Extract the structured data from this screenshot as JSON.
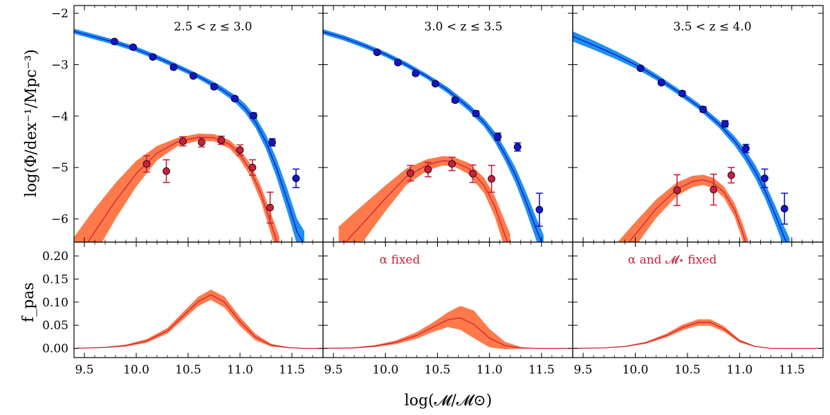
{
  "chart_data": {
    "type": "line",
    "xlabel": "log(𝓜/𝓜⊙)",
    "xlim": [
      9.4,
      11.8
    ],
    "xticks": [
      "9.5",
      "10.0",
      "10.5",
      "11.0",
      "11.5"
    ],
    "xtick_values": [
      9.5,
      10.0,
      10.5,
      11.0,
      11.5
    ],
    "top": {
      "ylabel": "log(Φ/dex⁻¹/Mpc⁻³)",
      "ylim": [
        -6.45,
        -1.85
      ],
      "yticks": [
        "−2",
        "−3",
        "−4",
        "−5",
        "−6"
      ],
      "ytick_values": [
        -2,
        -3,
        -4,
        -5,
        -6
      ]
    },
    "bottom": {
      "ylabel": "f_pas",
      "ylim": [
        -0.02,
        0.23
      ],
      "yticks": [
        "0.00",
        "0.05",
        "0.10",
        "0.15",
        "0.20"
      ],
      "ytick_values": [
        0,
        0.05,
        0.1,
        0.15,
        0.2
      ]
    },
    "colors": {
      "total_band": "#1e90f0",
      "total_line": "#1010c8",
      "total_point": "#1414c8",
      "passive_band": "#ff7a4a",
      "passive_line": "#d0203a",
      "passive_point": "#c8203c",
      "annotation": "#c8203c"
    },
    "panels": [
      {
        "label": "2.5 < z ≤ 3.0",
        "annotation": "",
        "total_points": [
          {
            "x": 9.79,
            "y": -2.55,
            "err": 0.03
          },
          {
            "x": 9.97,
            "y": -2.66,
            "err": 0.03
          },
          {
            "x": 10.16,
            "y": -2.85,
            "err": 0.03
          },
          {
            "x": 10.36,
            "y": -3.05,
            "err": 0.03
          },
          {
            "x": 10.55,
            "y": -3.22,
            "err": 0.03
          },
          {
            "x": 10.75,
            "y": -3.43,
            "err": 0.04
          },
          {
            "x": 10.95,
            "y": -3.66,
            "err": 0.04
          },
          {
            "x": 11.13,
            "y": -3.99,
            "err": 0.05
          },
          {
            "x": 11.31,
            "y": -4.51,
            "err": 0.07
          },
          {
            "x": 11.54,
            "y": -5.21,
            "err": 0.18
          }
        ],
        "total_fit": {
          "x": [
            9.4,
            9.6,
            9.8,
            10.0,
            10.2,
            10.4,
            10.6,
            10.8,
            10.95,
            11.05,
            11.15,
            11.25,
            11.35,
            11.45,
            11.55,
            11.62
          ],
          "y": [
            -2.35,
            -2.46,
            -2.57,
            -2.7,
            -2.86,
            -3.04,
            -3.23,
            -3.45,
            -3.66,
            -3.85,
            -4.12,
            -4.5,
            -5.0,
            -5.6,
            -6.25,
            -6.5
          ],
          "band": [
            0.05,
            0.05,
            0.05,
            0.05,
            0.05,
            0.05,
            0.05,
            0.06,
            0.07,
            0.09,
            0.11,
            0.14,
            0.18,
            0.22,
            0.25,
            0.26
          ]
        },
        "passive_points": [
          {
            "x": 10.1,
            "y": -4.93,
            "err": 0.16
          },
          {
            "x": 10.29,
            "y": -5.07,
            "err": 0.22
          },
          {
            "x": 10.45,
            "y": -4.49,
            "err": 0.09
          },
          {
            "x": 10.63,
            "y": -4.51,
            "err": 0.09
          },
          {
            "x": 10.82,
            "y": -4.47,
            "err": 0.08
          },
          {
            "x": 11.0,
            "y": -4.66,
            "err": 0.1
          },
          {
            "x": 11.12,
            "y": -5.0,
            "err": 0.15
          },
          {
            "x": 11.29,
            "y": -5.78,
            "err": 0.3
          }
        ],
        "passive_fit": {
          "x": [
            9.4,
            9.6,
            9.8,
            10.0,
            10.2,
            10.4,
            10.6,
            10.75,
            10.9,
            11.0,
            11.1,
            11.2,
            11.3,
            11.38
          ],
          "y": [
            -6.85,
            -6.25,
            -5.65,
            -5.12,
            -4.72,
            -4.5,
            -4.41,
            -4.42,
            -4.55,
            -4.75,
            -5.05,
            -5.5,
            -6.1,
            -6.6
          ],
          "band": [
            0.5,
            0.45,
            0.35,
            0.25,
            0.14,
            0.08,
            0.07,
            0.07,
            0.08,
            0.1,
            0.12,
            0.15,
            0.2,
            0.25
          ]
        },
        "fpas": {
          "x": [
            9.4,
            9.7,
            9.9,
            10.1,
            10.3,
            10.45,
            10.6,
            10.72,
            10.85,
            11.0,
            11.15,
            11.3,
            11.45,
            11.6,
            11.8
          ],
          "y": [
            0.0,
            0.002,
            0.006,
            0.016,
            0.038,
            0.07,
            0.102,
            0.116,
            0.1,
            0.058,
            0.024,
            0.007,
            0.002,
            0.0,
            0.0
          ],
          "band": [
            0.0,
            0.001,
            0.002,
            0.004,
            0.006,
            0.008,
            0.01,
            0.011,
            0.012,
            0.01,
            0.007,
            0.003,
            0.001,
            0.0,
            0.0
          ]
        }
      },
      {
        "label": "3.0 < z ≤ 3.5",
        "annotation": "α fixed",
        "total_points": [
          {
            "x": 9.92,
            "y": -2.76,
            "err": 0.03
          },
          {
            "x": 10.12,
            "y": -2.96,
            "err": 0.03
          },
          {
            "x": 10.29,
            "y": -3.17,
            "err": 0.03
          },
          {
            "x": 10.48,
            "y": -3.37,
            "err": 0.03
          },
          {
            "x": 10.67,
            "y": -3.69,
            "err": 0.04
          },
          {
            "x": 10.87,
            "y": -3.95,
            "err": 0.05
          },
          {
            "x": 11.08,
            "y": -4.4,
            "err": 0.07
          },
          {
            "x": 11.27,
            "y": -4.6,
            "err": 0.08
          },
          {
            "x": 11.48,
            "y": -5.82,
            "err": 0.32
          }
        ],
        "total_fit": {
          "x": [
            9.4,
            9.6,
            9.8,
            10.0,
            10.2,
            10.4,
            10.6,
            10.8,
            10.95,
            11.05,
            11.15,
            11.25,
            11.35,
            11.45,
            11.52
          ],
          "y": [
            -2.36,
            -2.48,
            -2.63,
            -2.8,
            -3.0,
            -3.23,
            -3.5,
            -3.83,
            -4.13,
            -4.4,
            -4.75,
            -5.15,
            -5.65,
            -6.2,
            -6.55
          ],
          "band": [
            0.05,
            0.05,
            0.05,
            0.05,
            0.05,
            0.05,
            0.06,
            0.07,
            0.08,
            0.1,
            0.12,
            0.15,
            0.18,
            0.22,
            0.24
          ]
        },
        "passive_points": [
          {
            "x": 10.24,
            "y": -5.11,
            "err": 0.15
          },
          {
            "x": 10.41,
            "y": -5.04,
            "err": 0.14
          },
          {
            "x": 10.64,
            "y": -4.93,
            "err": 0.13
          },
          {
            "x": 10.84,
            "y": -5.12,
            "err": 0.17
          },
          {
            "x": 11.02,
            "y": -5.22,
            "err": 0.26
          }
        ],
        "passive_fit": {
          "x": [
            9.55,
            9.8,
            10.0,
            10.2,
            10.4,
            10.55,
            10.65,
            10.8,
            10.95,
            11.05,
            11.12,
            11.2
          ],
          "y": [
            -6.6,
            -6.05,
            -5.6,
            -5.18,
            -4.95,
            -4.87,
            -4.88,
            -5.02,
            -5.35,
            -5.75,
            -6.15,
            -6.6
          ],
          "band": [
            0.45,
            0.35,
            0.25,
            0.16,
            0.11,
            0.09,
            0.09,
            0.11,
            0.15,
            0.2,
            0.25,
            0.3
          ]
        },
        "fpas": {
          "x": [
            9.4,
            9.7,
            9.9,
            10.1,
            10.3,
            10.45,
            10.6,
            10.72,
            10.85,
            11.0,
            11.15,
            11.3,
            11.45,
            11.6,
            11.8
          ],
          "y": [
            0.0,
            0.001,
            0.005,
            0.013,
            0.028,
            0.045,
            0.062,
            0.066,
            0.052,
            0.022,
            0.006,
            0.001,
            0.0,
            0.0,
            0.0
          ],
          "band": [
            0.0,
            0.001,
            0.002,
            0.004,
            0.007,
            0.01,
            0.016,
            0.026,
            0.03,
            0.02,
            0.008,
            0.002,
            0.0,
            0.0,
            0.0
          ]
        }
      },
      {
        "label": "3.5 < z ≤ 4.0",
        "annotation": "α and 𝓜⋆ fixed",
        "total_points": [
          {
            "x": 10.05,
            "y": -3.07,
            "err": 0.03
          },
          {
            "x": 10.25,
            "y": -3.35,
            "err": 0.03
          },
          {
            "x": 10.45,
            "y": -3.56,
            "err": 0.04
          },
          {
            "x": 10.65,
            "y": -3.87,
            "err": 0.05
          },
          {
            "x": 10.86,
            "y": -4.15,
            "err": 0.06
          },
          {
            "x": 11.06,
            "y": -4.63,
            "err": 0.08
          },
          {
            "x": 11.24,
            "y": -5.21,
            "err": 0.18
          },
          {
            "x": 11.43,
            "y": -5.8,
            "err": 0.3
          }
        ],
        "total_fit": {
          "x": [
            9.4,
            9.6,
            9.8,
            10.0,
            10.2,
            10.4,
            10.6,
            10.8,
            10.95,
            11.05,
            11.15,
            11.25,
            11.35,
            11.42,
            11.48
          ],
          "y": [
            -2.45,
            -2.62,
            -2.8,
            -3.0,
            -3.24,
            -3.51,
            -3.8,
            -4.15,
            -4.48,
            -4.75,
            -5.08,
            -5.48,
            -5.96,
            -6.32,
            -6.6
          ],
          "band": [
            0.1,
            0.09,
            0.08,
            0.07,
            0.06,
            0.06,
            0.06,
            0.07,
            0.09,
            0.11,
            0.13,
            0.15,
            0.18,
            0.2,
            0.22
          ]
        },
        "passive_points": [
          {
            "x": 10.4,
            "y": -5.44,
            "err": 0.3
          },
          {
            "x": 10.75,
            "y": -5.43,
            "err": 0.3
          },
          {
            "x": 10.92,
            "y": -5.15,
            "err": 0.15
          }
        ],
        "passive_fit": {
          "x": [
            9.8,
            10.0,
            10.2,
            10.4,
            10.55,
            10.65,
            10.75,
            10.85,
            10.95,
            11.02,
            11.08
          ],
          "y": [
            -6.8,
            -6.3,
            -5.8,
            -5.42,
            -5.27,
            -5.24,
            -5.3,
            -5.48,
            -5.82,
            -6.2,
            -6.6
          ],
          "band": [
            0.28,
            0.24,
            0.18,
            0.13,
            0.11,
            0.1,
            0.1,
            0.11,
            0.13,
            0.16,
            0.2
          ]
        },
        "fpas": {
          "x": [
            9.4,
            9.7,
            9.9,
            10.1,
            10.3,
            10.45,
            10.6,
            10.72,
            10.85,
            11.0,
            11.15,
            11.3,
            11.45,
            11.6,
            11.8
          ],
          "y": [
            0.0,
            0.001,
            0.004,
            0.012,
            0.028,
            0.045,
            0.056,
            0.056,
            0.042,
            0.016,
            0.004,
            0.0,
            0.0,
            0.0,
            0.0
          ],
          "band": [
            0.0,
            0.0,
            0.001,
            0.002,
            0.004,
            0.006,
            0.007,
            0.007,
            0.006,
            0.003,
            0.001,
            0.0,
            0.0,
            0.0,
            0.0
          ]
        }
      }
    ]
  }
}
